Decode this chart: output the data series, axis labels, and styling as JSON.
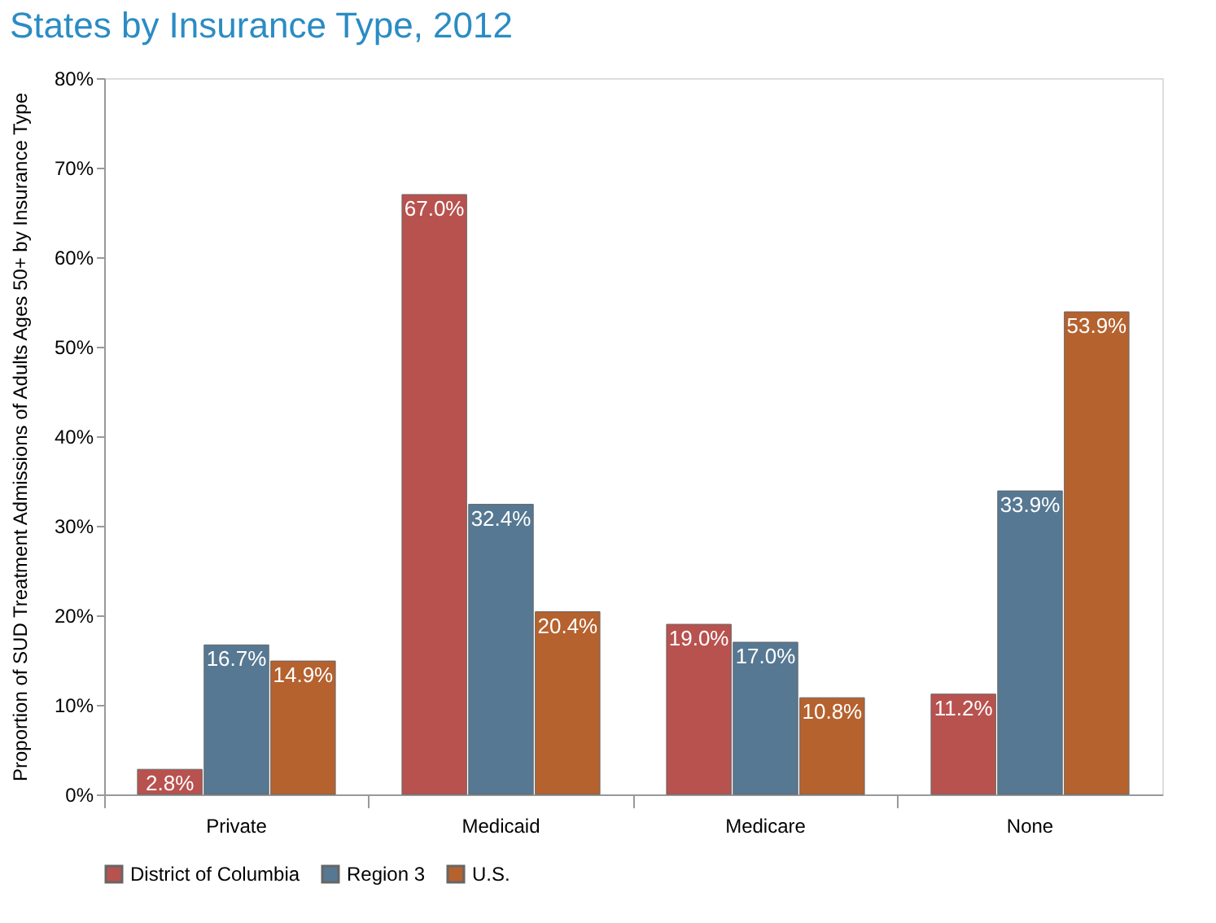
{
  "chart_data": {
    "type": "bar",
    "title": "States by Insurance Type, 2012",
    "ylabel": "Proportion of SUD Treatment Admissions of Adults Ages 50+ by Insurance Type",
    "categories": [
      "Private",
      "Medicaid",
      "Medicare",
      "None"
    ],
    "series": [
      {
        "name": "District of Columbia",
        "color": "#b8524f",
        "values": [
          2.8,
          67.0,
          19.0,
          11.2
        ],
        "value_labels": [
          "2.8%",
          "67.0%",
          "19.0%",
          "11.2%"
        ]
      },
      {
        "name": "Region 3",
        "color": "#567892",
        "values": [
          16.7,
          32.4,
          17.0,
          33.9
        ],
        "value_labels": [
          "16.7%",
          "32.4%",
          "17.0%",
          "33.9%"
        ]
      },
      {
        "name": "U.S.",
        "color": "#b5622f",
        "values": [
          14.9,
          20.4,
          10.8,
          53.9
        ],
        "value_labels": [
          "14.9%",
          "20.4%",
          "10.8%",
          "53.9%"
        ]
      }
    ],
    "ylim": [
      0,
      80
    ],
    "yticks": [
      {
        "value": 0,
        "label": "0%"
      },
      {
        "value": 10,
        "label": "10%"
      },
      {
        "value": 20,
        "label": "20%"
      },
      {
        "value": 30,
        "label": "30%"
      },
      {
        "value": 40,
        "label": "40%"
      },
      {
        "value": 50,
        "label": "50%"
      },
      {
        "value": 60,
        "label": "60%"
      },
      {
        "value": 70,
        "label": "70%"
      },
      {
        "value": 80,
        "label": "80%"
      }
    ],
    "grid": false,
    "legend": "bottom"
  }
}
